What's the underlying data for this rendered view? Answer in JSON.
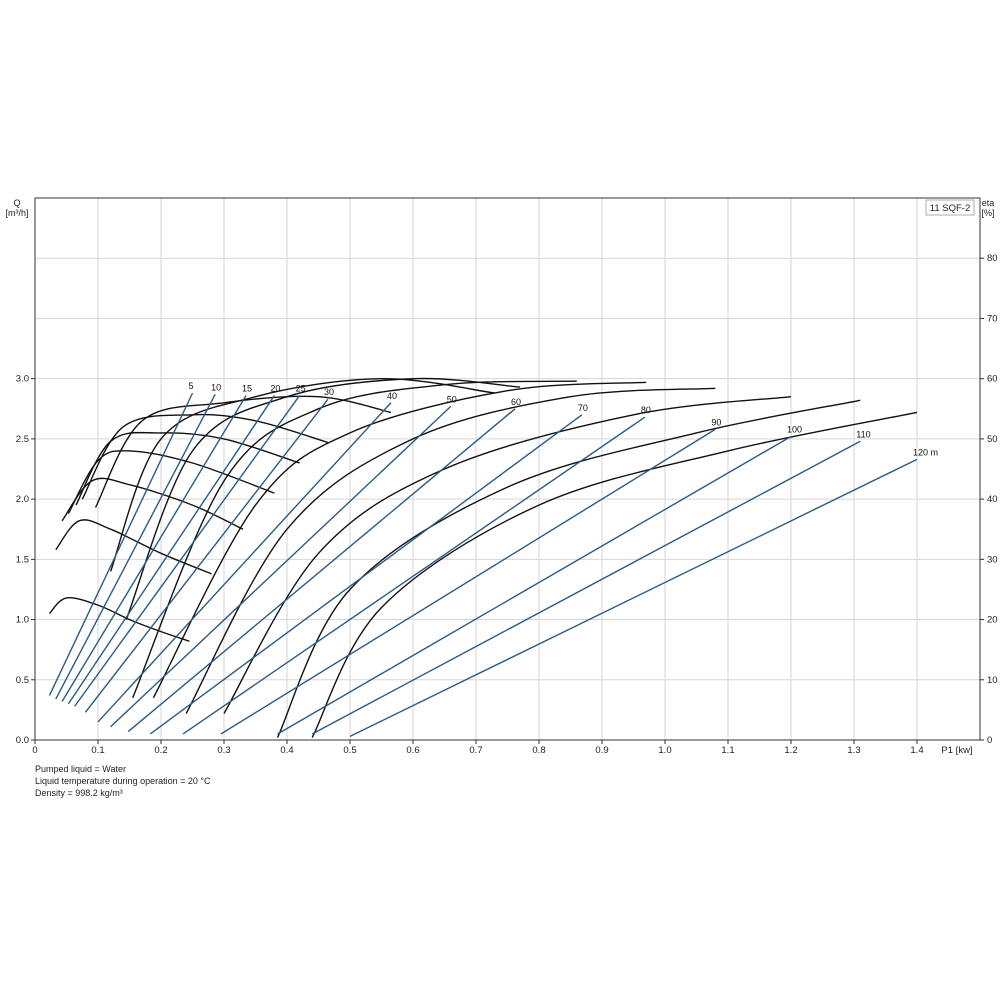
{
  "chart_data": {
    "type": "line",
    "title": "11 SQF-2",
    "xlabel": "P1 [kw]",
    "ylabel_left": "Q\n[m³/h]",
    "ylabel_right": "eta\n[%]",
    "xlim": [
      0,
      1.5
    ],
    "ylim_left": [
      0,
      4.5
    ],
    "ylim_right": [
      0,
      90
    ],
    "grid": true,
    "x_ticks": [
      "0",
      "0.1",
      "0.2",
      "0.3",
      "0.4",
      "0.5",
      "0.6",
      "0.7",
      "0.8",
      "0.9",
      "1.0",
      "1.1",
      "1.2",
      "1.3",
      "1.4"
    ],
    "y_left_ticks": [
      "0.0",
      "0.5",
      "1.0",
      "1.5",
      "2.0",
      "2.5",
      "3.0"
    ],
    "y_right_ticks": [
      "0",
      "10",
      "20",
      "30",
      "40",
      "50",
      "60",
      "70",
      "80"
    ],
    "power_series": [
      {
        "name": "5",
        "x": [
          0.023,
          0.25
        ],
        "y": [
          0.37,
          2.88
        ]
      },
      {
        "name": "10",
        "x": [
          0.033,
          0.286
        ],
        "y": [
          0.34,
          2.87
        ]
      },
      {
        "name": "15",
        "x": [
          0.043,
          0.335
        ],
        "y": [
          0.32,
          2.86
        ]
      },
      {
        "name": "20",
        "x": [
          0.053,
          0.38
        ],
        "y": [
          0.3,
          2.86
        ]
      },
      {
        "name": "25",
        "x": [
          0.063,
          0.42
        ],
        "y": [
          0.28,
          2.86
        ]
      },
      {
        "name": "30",
        "x": [
          0.08,
          0.465
        ],
        "y": [
          0.23,
          2.83
        ]
      },
      {
        "name": "40",
        "x": [
          0.1,
          0.565
        ],
        "y": [
          0.15,
          2.8
        ]
      },
      {
        "name": "50",
        "x": [
          0.12,
          0.66
        ],
        "y": [
          0.11,
          2.77
        ]
      },
      {
        "name": "60",
        "x": [
          0.148,
          0.762
        ],
        "y": [
          0.07,
          2.75
        ]
      },
      {
        "name": "70",
        "x": [
          0.183,
          0.868
        ],
        "y": [
          0.05,
          2.7
        ]
      },
      {
        "name": "80",
        "x": [
          0.235,
          0.968
        ],
        "y": [
          0.05,
          2.68
        ]
      },
      {
        "name": "90",
        "x": [
          0.295,
          1.08
        ],
        "y": [
          0.05,
          2.58
        ]
      },
      {
        "name": "100",
        "x": [
          0.385,
          1.2
        ],
        "y": [
          0.05,
          2.52
        ]
      },
      {
        "name": "110",
        "x": [
          0.44,
          1.31
        ],
        "y": [
          0.05,
          2.48
        ]
      },
      {
        "name": "120 m",
        "x": [
          0.5,
          1.4
        ],
        "y": [
          0.03,
          2.33
        ]
      }
    ],
    "efficiency_curves": [
      {
        "name": "5",
        "x": [
          0.023,
          0.05,
          0.1,
          0.15,
          0.2,
          0.245
        ],
        "y": [
          1.05,
          1.18,
          1.12,
          1.0,
          0.9,
          0.82
        ]
      },
      {
        "name": "10",
        "x": [
          0.033,
          0.07,
          0.12,
          0.2,
          0.28
        ],
        "y": [
          1.58,
          1.82,
          1.75,
          1.55,
          1.38
        ]
      },
      {
        "name": "15",
        "x": [
          0.043,
          0.09,
          0.15,
          0.25,
          0.33
        ],
        "y": [
          1.82,
          2.15,
          2.12,
          1.95,
          1.75
        ]
      },
      {
        "name": "20",
        "x": [
          0.053,
          0.1,
          0.15,
          0.25,
          0.38
        ],
        "y": [
          1.88,
          2.32,
          2.4,
          2.3,
          2.05
        ]
      },
      {
        "name": "25",
        "x": [
          0.065,
          0.12,
          0.2,
          0.3,
          0.42
        ],
        "y": [
          1.95,
          2.48,
          2.55,
          2.5,
          2.3
        ]
      },
      {
        "name": "30",
        "x": [
          0.075,
          0.14,
          0.25,
          0.35,
          0.465
        ],
        "y": [
          2.0,
          2.6,
          2.7,
          2.65,
          2.47
        ]
      },
      {
        "name": "40",
        "x": [
          0.096,
          0.17,
          0.3,
          0.45,
          0.565
        ],
        "y": [
          1.93,
          2.65,
          2.8,
          2.85,
          2.72
        ]
      },
      {
        "name": "50",
        "x": [
          0.12,
          0.2,
          0.35,
          0.55,
          0.73
        ],
        "y": [
          1.4,
          2.5,
          2.85,
          3.0,
          2.88
        ]
      },
      {
        "name": "60",
        "x": [
          0.145,
          0.25,
          0.4,
          0.6,
          0.77
        ],
        "y": [
          1.0,
          2.4,
          2.85,
          3.0,
          2.93
        ]
      },
      {
        "name": "70",
        "x": [
          0.155,
          0.3,
          0.45,
          0.65,
          0.86
        ],
        "y": [
          0.35,
          2.15,
          2.75,
          2.95,
          2.98
        ]
      },
      {
        "name": "80",
        "x": [
          0.188,
          0.35,
          0.5,
          0.75,
          0.97
        ],
        "y": [
          0.35,
          1.95,
          2.55,
          2.9,
          2.97
        ]
      },
      {
        "name": "90",
        "x": [
          0.24,
          0.4,
          0.6,
          0.85,
          1.08
        ],
        "y": [
          0.22,
          1.75,
          2.5,
          2.85,
          2.92
        ]
      },
      {
        "name": "100",
        "x": [
          0.3,
          0.45,
          0.65,
          0.95,
          1.2
        ],
        "y": [
          0.22,
          1.55,
          2.25,
          2.7,
          2.85
        ]
      },
      {
        "name": "110",
        "x": [
          0.385,
          0.5,
          0.75,
          1.05,
          1.31
        ],
        "y": [
          0.02,
          1.25,
          2.1,
          2.55,
          2.82
        ]
      },
      {
        "name": "120 m",
        "x": [
          0.44,
          0.55,
          0.8,
          1.1,
          1.4
        ],
        "y": [
          0.02,
          1.1,
          1.95,
          2.4,
          2.72
        ]
      }
    ],
    "legend_box": "11 SQF-2"
  },
  "notes": {
    "line1": "Pumped liquid = Water",
    "line2": "Liquid temperature during operation = 20 °C",
    "line3": "Density = 998.2 kg/m³"
  },
  "colors": {
    "power_line": "#2a5a86",
    "efficiency_line": "#111111",
    "grid": "#d6d6d6",
    "axis": "#333333"
  }
}
